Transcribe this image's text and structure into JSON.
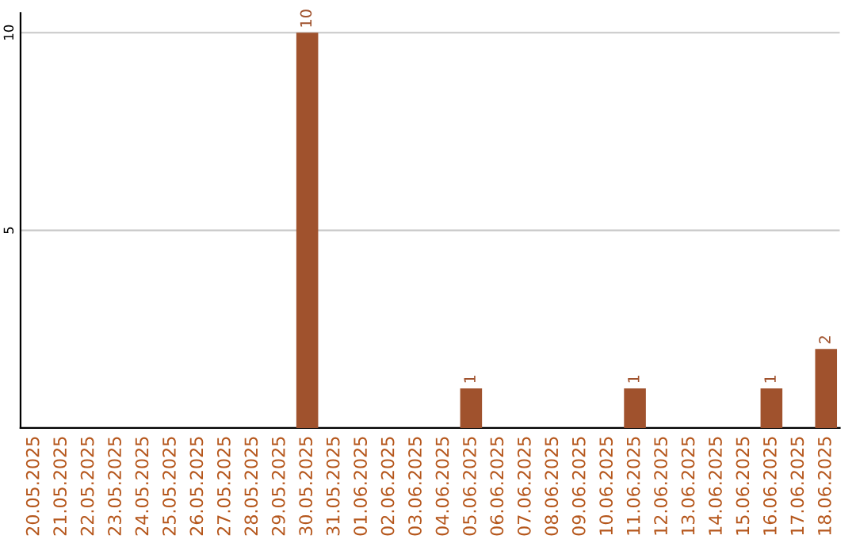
{
  "chart_data": {
    "type": "bar",
    "categories": [
      "20.05.2025",
      "21.05.2025",
      "22.05.2025",
      "23.05.2025",
      "24.05.2025",
      "25.05.2025",
      "26.05.2025",
      "27.05.2025",
      "28.05.2025",
      "29.05.2025",
      "30.05.2025",
      "31.05.2025",
      "01.06.2025",
      "02.06.2025",
      "03.06.2025",
      "04.06.2025",
      "05.06.2025",
      "06.06.2025",
      "07.06.2025",
      "08.06.2025",
      "09.06.2025",
      "10.06.2025",
      "11.06.2025",
      "12.06.2025",
      "13.06.2025",
      "14.06.2025",
      "15.06.2025",
      "16.06.2025",
      "17.06.2025",
      "18.06.2025"
    ],
    "values": [
      0,
      0,
      0,
      0,
      0,
      0,
      0,
      0,
      0,
      0,
      10,
      0,
      0,
      0,
      0,
      0,
      1,
      0,
      0,
      0,
      0,
      0,
      1,
      0,
      0,
      0,
      0,
      1,
      0,
      2
    ],
    "value_labels": [
      null,
      null,
      null,
      null,
      null,
      null,
      null,
      null,
      null,
      null,
      "10",
      null,
      null,
      null,
      null,
      null,
      "1",
      null,
      null,
      null,
      null,
      null,
      "1",
      null,
      null,
      null,
      null,
      "1",
      null,
      "2"
    ],
    "color": "#a0522d",
    "ylim": [
      0,
      10.5
    ],
    "yticks": [
      5,
      10
    ],
    "grid": "y"
  }
}
